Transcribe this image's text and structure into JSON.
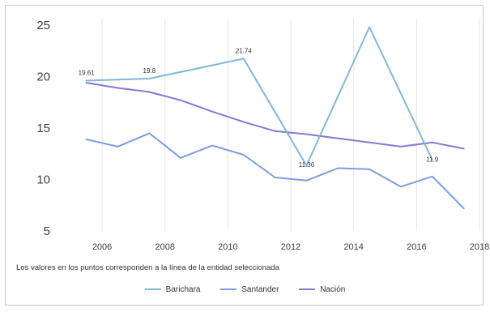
{
  "chart_data": {
    "type": "line",
    "title": "",
    "xlabel": "",
    "ylabel": "",
    "xlim": [
      2005.2,
      2018
    ],
    "ylim": [
      5,
      25
    ],
    "x_ticks": [
      "2006",
      "2008",
      "2010",
      "2012",
      "2014",
      "2016",
      "2018"
    ],
    "y_ticks": [
      "25",
      "20",
      "15",
      "10",
      "5"
    ],
    "grid": "vertical",
    "legend_position": "bottom",
    "note": "Los valores en los puntos corresponden a la línea de la entidad seleccionada",
    "series": [
      {
        "name": "Barichara",
        "color": "#7fb8d8",
        "x": [
          2005.5,
          2007.5,
          2010.5,
          2012.5,
          2014.5,
          2016.5
        ],
        "values": [
          19.61,
          19.8,
          21.74,
          11.36,
          24.8,
          11.9
        ],
        "data_labels": [
          "19.61",
          "19.8",
          "21.74",
          "11.36",
          null,
          "11.9"
        ]
      },
      {
        "name": "Santander",
        "color": "#7a9ee0",
        "x": [
          2005.5,
          2006.5,
          2007.5,
          2008.5,
          2009.5,
          2010.5,
          2011.5,
          2012.5,
          2013.5,
          2014.5,
          2015.5,
          2016.5,
          2017.5
        ],
        "values": [
          13.9,
          13.2,
          14.5,
          12.1,
          13.3,
          12.4,
          10.2,
          9.9,
          11.1,
          11.0,
          9.3,
          10.3,
          7.2
        ]
      },
      {
        "name": "Nación",
        "color": "#8878d4",
        "x": [
          2005.5,
          2006.5,
          2007.5,
          2008.5,
          2009.5,
          2010.5,
          2011.5,
          2012.5,
          2013.5,
          2014.5,
          2015.5,
          2016.5,
          2017.5
        ],
        "values": [
          19.4,
          18.9,
          18.5,
          17.7,
          16.6,
          15.6,
          14.7,
          14.4,
          14.0,
          13.6,
          13.2,
          13.6,
          13.0
        ]
      }
    ]
  }
}
